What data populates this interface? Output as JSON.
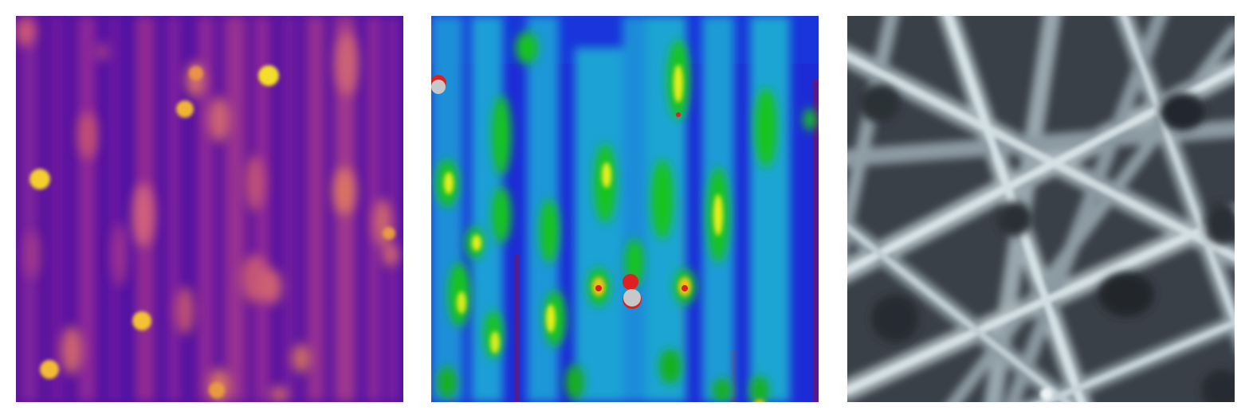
{
  "figure": {
    "panels": [
      {
        "id": "panel-1",
        "colormap": "plasma",
        "colors": {
          "base": "#4a0fa3",
          "mid": "#b4358a",
          "streak": "#d85a73",
          "hot": "#f0a43a",
          "peak": "#fde725"
        }
      },
      {
        "id": "panel-2",
        "colormap": "jet",
        "colors": {
          "bg": "#1d2bd6",
          "cyan": "#1aa0d8",
          "green": "#18c41a",
          "yellow": "#e6ef1a",
          "red": "#e02020",
          "sat": "#c8c8c8",
          "dark": "#5a1a86"
        }
      },
      {
        "id": "panel-3",
        "colormap": "bone",
        "colors": {
          "bg": "#2b2f36",
          "fiber": "#d6e2e6",
          "fiber_dim": "#8c9aa3"
        }
      }
    ]
  }
}
